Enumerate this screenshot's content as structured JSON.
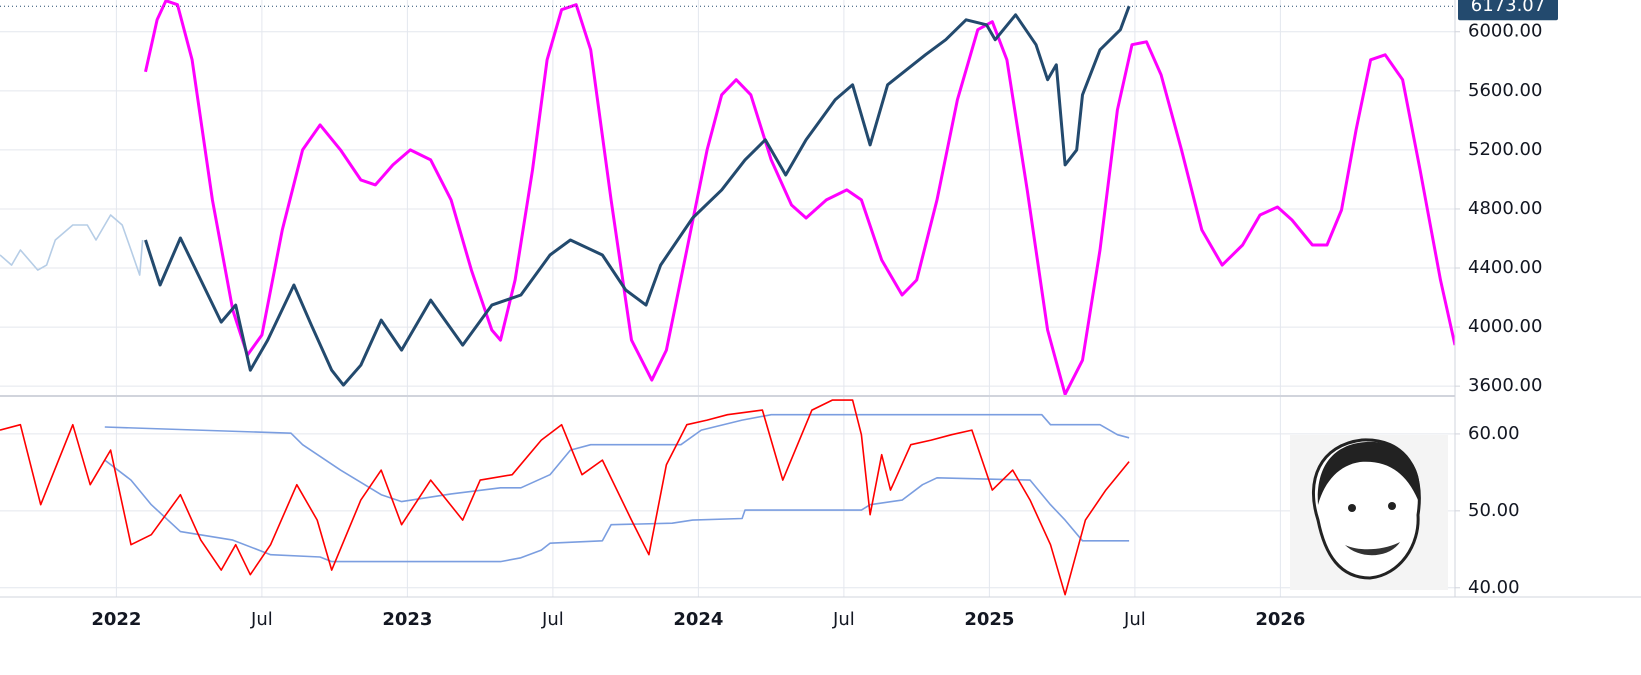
{
  "chart_data": [
    {
      "type": "line",
      "xlim": [
        2021.6,
        2026.6
      ],
      "xticks": [
        2022,
        2022.5,
        2023,
        2023.5,
        2024,
        2024.5,
        2025,
        2025.5,
        2026
      ],
      "ylim": [
        3540,
        6215
      ],
      "yticks": [
        {
          "value": 3600,
          "label": "3600.00"
        },
        {
          "value": 4000,
          "label": "4000.00"
        },
        {
          "value": 4400,
          "label": "4400.00"
        },
        {
          "value": 4800,
          "label": "4800.00"
        },
        {
          "value": 5200,
          "label": "5200.00"
        },
        {
          "value": 5600,
          "label": "5600.00"
        },
        {
          "value": 6000,
          "label": "6000.00"
        }
      ],
      "grid": true,
      "series": [
        {
          "color": "#b6cde6",
          "x": [
            2021.6,
            2021.64,
            2021.67,
            2021.73,
            2021.76,
            2021.79,
            2021.85,
            2021.9,
            2021.93,
            2021.98,
            2022.02,
            2022.05,
            2022.08,
            2022.09
          ],
          "values": [
            4488,
            4420,
            4522,
            4386,
            4420,
            4590,
            4691,
            4691,
            4590,
            4759,
            4691,
            4522,
            4352,
            4590
          ]
        },
        {
          "color": "#ff00ff",
          "x": [
            2022.1,
            2022.14,
            2022.17,
            2022.21,
            2022.26,
            2022.33,
            2022.4,
            2022.45,
            2022.5,
            2022.57,
            2022.64,
            2022.7,
            2022.77,
            2022.84,
            2022.89,
            2022.95,
            2023.01,
            2023.08,
            2023.15,
            2023.22,
            2023.29,
            2023.32,
            2023.37,
            2023.43,
            2023.48,
            2023.53,
            2023.58,
            2023.63,
            2023.7,
            2023.77,
            2023.84,
            2023.89,
            2023.96,
            2024.03,
            2024.08,
            2024.13,
            2024.18,
            2024.25,
            2024.32,
            2024.37,
            2024.44,
            2024.51,
            2024.56,
            2024.63,
            2024.7,
            2024.75,
            2024.82,
            2024.89,
            2024.96,
            2025.01,
            2025.06,
            2025.13,
            2025.2,
            2025.26,
            2025.32,
            2025.38,
            2025.44,
            2025.49,
            2025.54,
            2025.59,
            2025.66,
            2025.73,
            2025.8,
            2025.87,
            2025.93,
            2025.99,
            2026.04,
            2026.11,
            2026.16,
            2026.21,
            2026.26,
            2026.31,
            2026.36,
            2026.42,
            2026.48,
            2026.55,
            2026.6
          ],
          "values": [
            5729,
            6081,
            6210,
            6183,
            5810,
            4861,
            4115,
            3810,
            3946,
            4658,
            5200,
            5369,
            5200,
            4997,
            4963,
            5098,
            5200,
            5132,
            4861,
            4386,
            3980,
            3912,
            4319,
            5064,
            5810,
            6149,
            6183,
            5878,
            4861,
            3912,
            3641,
            3844,
            4522,
            5200,
            5573,
            5675,
            5573,
            5132,
            4827,
            4739,
            4861,
            4929,
            4861,
            4454,
            4217,
            4319,
            4861,
            5539,
            6014,
            6068,
            5810,
            4929,
            3980,
            3545,
            3776,
            4522,
            5471,
            5912,
            5932,
            5708,
            5200,
            4658,
            4420,
            4556,
            4759,
            4813,
            4725,
            4556,
            4556,
            4793,
            5336,
            5810,
            5844,
            5675,
            5064,
            4318,
            3878
          ]
        },
        {
          "color": "#234a6e",
          "x": [
            2022.1,
            2022.15,
            2022.22,
            2022.29,
            2022.36,
            2022.41,
            2022.46,
            2022.52,
            2022.61,
            2022.67,
            2022.74,
            2022.78,
            2022.84,
            2022.91,
            2022.98,
            2023.08,
            2023.19,
            2023.29,
            2023.39,
            2023.49,
            2023.56,
            2023.67,
            2023.75,
            2023.82,
            2023.87,
            2023.98,
            2024.08,
            2024.16,
            2024.23,
            2024.3,
            2024.37,
            2024.47,
            2024.53,
            2024.59,
            2024.65,
            2024.78,
            2024.85,
            2024.92,
            2024.99,
            2025.02,
            2025.09,
            2025.16,
            2025.2,
            2025.23,
            2025.26,
            2025.3,
            2025.32,
            2025.38,
            2025.45,
            2025.48
          ],
          "values": [
            4590,
            4285,
            4603,
            4319,
            4034,
            4149,
            3708,
            3912,
            4285,
            4013,
            3708,
            3607,
            3742,
            4047,
            3844,
            4183,
            3878,
            4149,
            4217,
            4488,
            4590,
            4488,
            4251,
            4149,
            4420,
            4739,
            4929,
            5132,
            5268,
            5030,
            5268,
            5539,
            5641,
            5234,
            5641,
            5844,
            5946,
            6081,
            6047,
            5946,
            6115,
            5912,
            5675,
            5776,
            5098,
            5200,
            5573,
            5878,
            6014,
            6173.07
          ]
        }
      ]
    },
    {
      "type": "line",
      "xlim": [
        2021.6,
        2026.6
      ],
      "xticks": [
        {
          "value": 2022,
          "label": "2022"
        },
        {
          "value": 2022.5,
          "label": "Jul"
        },
        {
          "value": 2023,
          "label": "2023"
        },
        {
          "value": 2023.5,
          "label": "Jul"
        },
        {
          "value": 2024,
          "label": "2024"
        },
        {
          "value": 2024.5,
          "label": "Jul"
        },
        {
          "value": 2025,
          "label": "2025"
        },
        {
          "value": 2025.5,
          "label": "Jul"
        },
        {
          "value": 2026,
          "label": "2026"
        }
      ],
      "ylim": [
        38.8,
        64.8
      ],
      "yticks": [
        {
          "value": 40,
          "label": "40.00"
        },
        {
          "value": 50,
          "label": "50.00"
        },
        {
          "value": 60,
          "label": "60.00"
        }
      ],
      "grid": true,
      "series": [
        {
          "color": "#7b9ee0",
          "x": [
            2021.96,
            2022.6,
            2022.64,
            2022.77,
            2022.91,
            2022.98,
            2023.15,
            2023.32,
            2023.39,
            2023.49,
            2023.56,
            2023.63,
            2023.94,
            2024.01,
            2024.15,
            2024.25,
            2025.18,
            2025.21,
            2025.38,
            2025.44,
            2025.48
          ],
          "values": [
            60.9,
            60.1,
            58.6,
            55.3,
            52.1,
            51.2,
            52.2,
            53.0,
            53.0,
            54.7,
            57.9,
            58.6,
            58.6,
            60.5,
            61.8,
            62.5,
            62.5,
            61.2,
            61.2,
            59.9,
            59.5
          ]
        },
        {
          "color": "#7b9ee0",
          "x": [
            2021.96,
            2022.05,
            2022.12,
            2022.22,
            2022.4,
            2022.53,
            2022.7,
            2022.74,
            2023.32,
            2023.39,
            2023.46,
            2023.49,
            2023.67,
            2023.7,
            2023.91,
            2023.98,
            2024.15,
            2024.16,
            2024.56,
            2024.59,
            2024.7,
            2024.77,
            2024.82,
            2025.14,
            2025.21,
            2025.26,
            2025.32,
            2025.48
          ],
          "values": [
            56.6,
            54.0,
            50.8,
            47.3,
            46.2,
            44.3,
            44.0,
            43.4,
            43.4,
            43.9,
            44.9,
            45.8,
            46.1,
            48.2,
            48.4,
            48.8,
            49.0,
            50.1,
            50.1,
            50.8,
            51.4,
            53.4,
            54.3,
            54.0,
            50.8,
            48.8,
            46.1,
            46.1
          ]
        },
        {
          "color": "#ff0000",
          "x": [
            2021.6,
            2021.67,
            2021.74,
            2021.85,
            2021.91,
            2021.98,
            2022.05,
            2022.12,
            2022.22,
            2022.29,
            2022.36,
            2022.41,
            2022.46,
            2022.53,
            2022.62,
            2022.69,
            2022.74,
            2022.84,
            2022.91,
            2022.98,
            2023.08,
            2023.19,
            2023.25,
            2023.36,
            2023.46,
            2023.53,
            2023.6,
            2023.67,
            2023.77,
            2023.83,
            2023.89,
            2023.96,
            2024.03,
            2024.1,
            2024.22,
            2024.29,
            2024.39,
            2024.46,
            2024.53,
            2024.56,
            2024.59,
            2024.63,
            2024.66,
            2024.73,
            2024.8,
            2024.87,
            2024.94,
            2025.01,
            2025.08,
            2025.14,
            2025.21,
            2025.26,
            2025.33,
            2025.4,
            2025.48
          ],
          "values": [
            60.5,
            61.2,
            50.8,
            61.2,
            53.4,
            57.9,
            45.6,
            46.9,
            52.1,
            46.2,
            42.3,
            45.6,
            41.7,
            45.6,
            53.4,
            48.8,
            42.3,
            51.4,
            55.3,
            48.2,
            54.0,
            48.8,
            54.0,
            54.7,
            59.2,
            61.2,
            54.7,
            56.6,
            48.8,
            44.3,
            56.0,
            61.2,
            61.8,
            62.5,
            63.1,
            54.0,
            63.1,
            64.4,
            64.4,
            59.9,
            49.5,
            57.3,
            52.7,
            58.6,
            59.2,
            59.9,
            60.5,
            52.7,
            55.3,
            51.4,
            45.6,
            39.1,
            48.8,
            52.7,
            56.4
          ]
        }
      ]
    }
  ]
}
